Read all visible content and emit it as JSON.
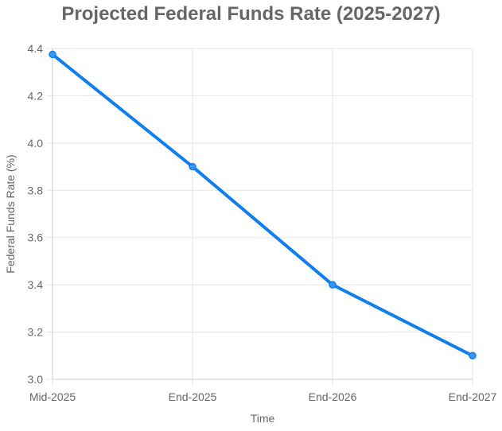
{
  "chart_data": {
    "type": "line",
    "title": "Projected Federal Funds Rate (2025-2027)",
    "xlabel": "Time",
    "ylabel": "Federal Funds Rate (%)",
    "categories": [
      "Mid-2025",
      "End-2025",
      "End-2026",
      "End-2027"
    ],
    "series": [
      {
        "values": [
          4.375,
          3.9,
          3.4,
          3.1
        ]
      }
    ],
    "ylim": [
      3.0,
      4.4
    ],
    "yticks": [
      "3.0",
      "3.2",
      "3.4",
      "3.6",
      "3.8",
      "4.0",
      "4.2",
      "4.4"
    ],
    "grid": true,
    "legend": "none",
    "colors": {
      "line": "#0e7ef0",
      "point_fill": "#3a96f5",
      "grid": "#e5e5e5",
      "text": "#666666"
    }
  }
}
